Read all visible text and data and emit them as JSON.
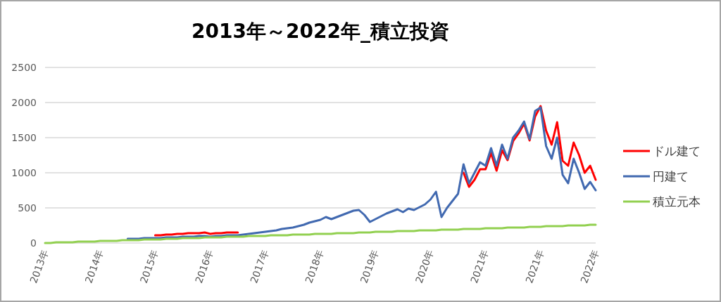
{
  "chart_data": {
    "type": "line",
    "title": "2013年～2022年_積立投資",
    "categories": [
      "2013年",
      null,
      null,
      null,
      null,
      null,
      null,
      null,
      null,
      null,
      "2014年",
      null,
      null,
      null,
      null,
      null,
      null,
      null,
      null,
      null,
      "2015年",
      null,
      null,
      null,
      null,
      null,
      null,
      null,
      null,
      null,
      "2016年",
      null,
      null,
      null,
      null,
      null,
      null,
      null,
      null,
      null,
      "2017年",
      null,
      null,
      null,
      null,
      null,
      null,
      null,
      null,
      null,
      "2018年",
      null,
      null,
      null,
      null,
      null,
      null,
      null,
      null,
      null,
      "2019年",
      null,
      null,
      null,
      null,
      null,
      null,
      null,
      null,
      null,
      "2020年",
      null,
      null,
      null,
      null,
      null,
      null,
      null,
      null,
      null,
      "2021年",
      null,
      null,
      null,
      null,
      null,
      null,
      null,
      null,
      null,
      "2021年",
      null,
      null,
      null,
      null,
      null,
      null,
      null,
      null,
      null,
      "2022年"
    ],
    "series": [
      {
        "name": "ドル建て",
        "color": "#ff0000",
        "values": [
          null,
          null,
          null,
          null,
          null,
          null,
          null,
          null,
          null,
          null,
          null,
          null,
          null,
          null,
          null,
          null,
          null,
          null,
          null,
          null,
          110,
          110,
          120,
          120,
          130,
          130,
          140,
          140,
          140,
          150,
          130,
          140,
          140,
          150,
          150,
          150,
          null,
          null,
          null,
          null,
          null,
          null,
          null,
          null,
          null,
          null,
          null,
          null,
          null,
          null,
          null,
          null,
          null,
          null,
          null,
          null,
          null,
          null,
          null,
          null,
          null,
          null,
          null,
          null,
          null,
          null,
          null,
          null,
          null,
          null,
          null,
          null,
          null,
          null,
          null,
          null,
          1000,
          800,
          900,
          1050,
          1050,
          1280,
          1030,
          1320,
          1180,
          1450,
          1560,
          1700,
          1460,
          1800,
          1950,
          1600,
          1400,
          1720,
          1170,
          1100,
          1430,
          1250,
          1000,
          1100,
          900
        ]
      },
      {
        "name": "円建て",
        "color": "#4169b0",
        "values": [
          null,
          null,
          null,
          null,
          null,
          null,
          null,
          null,
          null,
          null,
          null,
          null,
          null,
          null,
          null,
          60,
          60,
          60,
          70,
          70,
          70,
          70,
          80,
          80,
          80,
          90,
          90,
          90,
          100,
          100,
          90,
          100,
          100,
          110,
          110,
          110,
          120,
          130,
          140,
          150,
          160,
          170,
          180,
          200,
          210,
          220,
          240,
          260,
          290,
          310,
          330,
          370,
          340,
          370,
          400,
          430,
          460,
          470,
          400,
          300,
          340,
          380,
          420,
          450,
          480,
          440,
          490,
          470,
          510,
          550,
          620,
          730,
          370,
          500,
          600,
          700,
          1120,
          850,
          1000,
          1150,
          1100,
          1350,
          1100,
          1400,
          1200,
          1500,
          1600,
          1730,
          1480,
          1880,
          1930,
          1380,
          1200,
          1500,
          970,
          850,
          1200,
          1000,
          770,
          870,
          750
        ]
      },
      {
        "name": "積立元本",
        "color": "#92d050",
        "values": [
          0,
          0,
          10,
          10,
          10,
          10,
          20,
          20,
          20,
          20,
          30,
          30,
          30,
          30,
          40,
          40,
          40,
          40,
          50,
          50,
          50,
          50,
          60,
          60,
          60,
          70,
          70,
          70,
          70,
          80,
          80,
          80,
          80,
          90,
          90,
          90,
          90,
          100,
          100,
          100,
          100,
          110,
          110,
          110,
          110,
          120,
          120,
          120,
          120,
          130,
          130,
          130,
          130,
          140,
          140,
          140,
          140,
          150,
          150,
          150,
          160,
          160,
          160,
          160,
          170,
          170,
          170,
          170,
          180,
          180,
          180,
          180,
          190,
          190,
          190,
          190,
          200,
          200,
          200,
          200,
          210,
          210,
          210,
          210,
          220,
          220,
          220,
          220,
          230,
          230,
          230,
          240,
          240,
          240,
          240,
          250,
          250,
          250,
          250,
          260,
          260
        ]
      }
    ],
    "ylim": [
      0,
      2500
    ],
    "yticks": [
      0,
      500,
      1000,
      1500,
      2000,
      2500
    ],
    "grid": "y",
    "legend": "right",
    "marker": "none",
    "line_style": "solid"
  }
}
